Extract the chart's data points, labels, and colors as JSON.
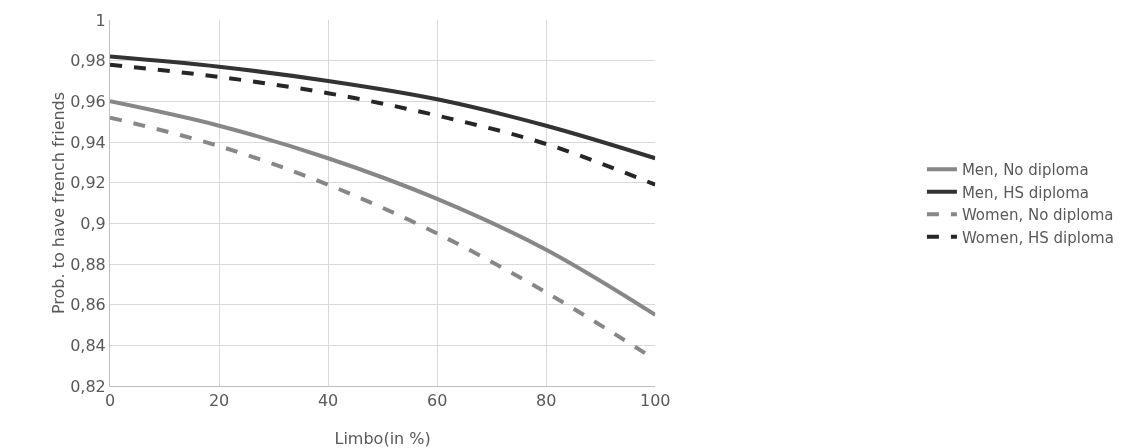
{
  "chart_data": {
    "type": "line",
    "xlabel": "Limbo(in %)",
    "ylabel": "Prob. to have french friends",
    "x": [
      0,
      20,
      40,
      60,
      80,
      100
    ],
    "series": [
      {
        "name": "Men, No diploma",
        "color": "#878787",
        "line_style": "solid",
        "values": [
          0.96,
          0.948,
          0.932,
          0.912,
          0.887,
          0.855
        ]
      },
      {
        "name": "Men, HS diploma",
        "color": "#333333",
        "line_style": "solid",
        "values": [
          0.982,
          0.977,
          0.97,
          0.961,
          0.948,
          0.932
        ]
      },
      {
        "name": "Women, No diploma",
        "color": "#878787",
        "line_style": "dashed",
        "values": [
          0.952,
          0.938,
          0.919,
          0.895,
          0.866,
          0.833
        ]
      },
      {
        "name": "Women, HS diploma",
        "color": "#262626",
        "line_style": "dashed",
        "values": [
          0.978,
          0.972,
          0.964,
          0.953,
          0.939,
          0.919
        ]
      }
    ],
    "xlim": [
      0,
      100
    ],
    "xticks": [
      0,
      20,
      40,
      60,
      80,
      100
    ],
    "ylim": [
      0.82,
      1
    ],
    "yticks": [
      {
        "value": 0.82,
        "label": "0,82"
      },
      {
        "value": 0.84,
        "label": "0,84"
      },
      {
        "value": 0.86,
        "label": "0,86"
      },
      {
        "value": 0.88,
        "label": "0,88"
      },
      {
        "value": 0.9,
        "label": "0,9"
      },
      {
        "value": 0.92,
        "label": "0,92"
      },
      {
        "value": 0.94,
        "label": "0,94"
      },
      {
        "value": 0.96,
        "label": "0,96"
      },
      {
        "value": 0.98,
        "label": "0,98"
      },
      {
        "value": 1,
        "label": "1"
      }
    ],
    "grid": true,
    "legend": "right",
    "marker": "none"
  }
}
